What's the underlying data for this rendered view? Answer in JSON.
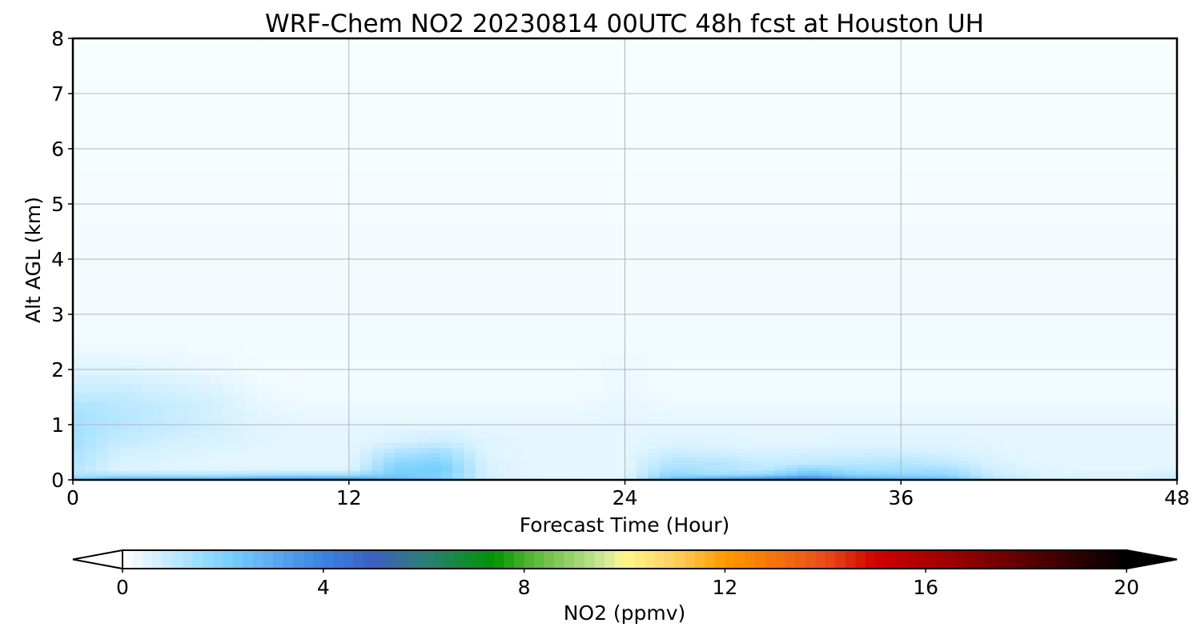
{
  "chart_data": {
    "type": "heatmap",
    "title": "WRF-Chem NO2  20230814 00UTC 48h fcst at Houston UH",
    "xlabel": "Forecast Time (Hour)",
    "ylabel": "Alt AGL (km)",
    "xlim": [
      0,
      48
    ],
    "ylim": [
      0,
      8
    ],
    "x_ticks": [
      0,
      12,
      24,
      36,
      48
    ],
    "y_ticks": [
      0,
      1,
      2,
      3,
      4,
      5,
      6,
      7,
      8
    ],
    "grid": true,
    "x_hours": [
      0,
      2,
      4,
      6,
      8,
      10,
      12,
      14,
      16,
      18,
      20,
      22,
      24,
      26,
      28,
      30,
      32,
      34,
      36,
      38,
      40,
      42,
      44,
      46,
      48
    ],
    "z_levels_km": [
      0,
      0.05,
      0.1,
      0.2,
      0.3,
      0.5,
      0.7,
      1.0,
      1.3,
      1.6,
      2.0,
      2.5,
      8.0
    ],
    "no2_ppmv": [
      [
        1.8,
        2.8,
        3.2,
        3.4,
        4.0,
        4.4,
        4.2,
        3.0,
        2.6,
        0.8,
        0.5,
        0.4,
        0.4,
        2.6,
        3.2,
        3.8,
        4.6,
        3.2,
        2.8,
        2.4,
        1.2,
        0.6,
        0.5,
        0.5,
        0.8
      ],
      [
        1.6,
        2.2,
        2.2,
        2.2,
        2.5,
        2.7,
        2.6,
        2.4,
        2.0,
        0.7,
        0.5,
        0.4,
        0.4,
        2.2,
        2.6,
        3.0,
        3.6,
        2.6,
        2.4,
        2.2,
        1.0,
        0.6,
        0.5,
        0.5,
        0.8
      ],
      [
        1.3,
        1.2,
        1.1,
        1.1,
        1.3,
        1.4,
        1.4,
        2.2,
        2.0,
        0.6,
        0.4,
        0.4,
        0.4,
        1.8,
        1.5,
        1.7,
        2.5,
        1.9,
        1.8,
        1.7,
        0.8,
        0.5,
        0.5,
        0.5,
        0.7
      ],
      [
        1.1,
        0.5,
        0.5,
        0.5,
        0.5,
        0.5,
        0.5,
        2.0,
        2.2,
        0.6,
        0.4,
        0.4,
        0.4,
        1.4,
        1.2,
        1.0,
        1.8,
        1.4,
        1.4,
        1.4,
        0.7,
        0.5,
        0.4,
        0.4,
        0.5
      ],
      [
        1.2,
        0.6,
        0.5,
        0.4,
        0.4,
        0.4,
        0.4,
        1.8,
        2.0,
        0.6,
        0.4,
        0.4,
        0.4,
        1.2,
        1.2,
        0.9,
        1.0,
        1.1,
        1.2,
        1.0,
        0.6,
        0.4,
        0.4,
        0.4,
        0.4
      ],
      [
        1.3,
        0.7,
        0.6,
        0.5,
        0.4,
        0.4,
        0.4,
        1.2,
        1.5,
        0.5,
        0.4,
        0.4,
        0.4,
        0.8,
        0.7,
        0.6,
        0.7,
        0.7,
        0.7,
        0.6,
        0.5,
        0.4,
        0.4,
        0.4,
        0.4
      ],
      [
        1.4,
        0.9,
        0.7,
        0.6,
        0.5,
        0.4,
        0.4,
        0.6,
        0.8,
        0.5,
        0.4,
        0.4,
        0.4,
        0.5,
        0.5,
        0.4,
        0.4,
        0.5,
        0.5,
        0.5,
        0.4,
        0.4,
        0.4,
        0.4,
        0.4
      ],
      [
        1.4,
        1.1,
        0.9,
        0.7,
        0.5,
        0.4,
        0.4,
        0.4,
        0.4,
        0.4,
        0.4,
        0.4,
        0.4,
        0.4,
        0.4,
        0.4,
        0.4,
        0.4,
        0.4,
        0.4,
        0.4,
        0.4,
        0.4,
        0.4,
        0.4
      ],
      [
        1.3,
        1.1,
        0.9,
        0.7,
        0.4,
        0.3,
        0.3,
        0.3,
        0.3,
        0.3,
        0.3,
        0.3,
        0.4,
        0.3,
        0.3,
        0.3,
        0.3,
        0.3,
        0.3,
        0.3,
        0.3,
        0.3,
        0.3,
        0.3,
        0.3
      ],
      [
        0.9,
        0.9,
        0.7,
        0.6,
        0.3,
        0.2,
        0.2,
        0.2,
        0.2,
        0.2,
        0.2,
        0.2,
        0.3,
        0.2,
        0.2,
        0.2,
        0.2,
        0.2,
        0.2,
        0.2,
        0.2,
        0.2,
        0.2,
        0.2,
        0.2
      ],
      [
        0.5,
        0.5,
        0.4,
        0.3,
        0.2,
        0.2,
        0.2,
        0.2,
        0.2,
        0.2,
        0.2,
        0.2,
        0.3,
        0.2,
        0.2,
        0.2,
        0.2,
        0.2,
        0.2,
        0.2,
        0.2,
        0.2,
        0.2,
        0.2,
        0.2
      ],
      [
        0.2,
        0.2,
        0.2,
        0.2,
        0.2,
        0.2,
        0.2,
        0.2,
        0.2,
        0.2,
        0.2,
        0.2,
        0.2,
        0.2,
        0.2,
        0.2,
        0.2,
        0.2,
        0.2,
        0.2,
        0.2,
        0.2,
        0.2,
        0.2,
        0.2
      ],
      [
        0.1,
        0.1,
        0.1,
        0.1,
        0.1,
        0.1,
        0.1,
        0.1,
        0.1,
        0.1,
        0.1,
        0.1,
        0.1,
        0.1,
        0.1,
        0.1,
        0.1,
        0.1,
        0.1,
        0.1,
        0.1,
        0.1,
        0.1,
        0.1,
        0.1
      ]
    ],
    "colorbar": {
      "label": "NO2  (ppmv)",
      "range": [
        0,
        20
      ],
      "ticks": [
        0,
        4,
        8,
        12,
        16,
        20
      ],
      "extend": "both",
      "orientation": "horizontal",
      "placement": "bottom",
      "anchors": [
        {
          "v": 0,
          "c": "#ffffff"
        },
        {
          "v": 2,
          "c": "#7dd3ff"
        },
        {
          "v": 4,
          "c": "#3b82e0"
        },
        {
          "v": 5,
          "c": "#3b5fbf"
        },
        {
          "v": 6,
          "c": "#2e7d7a"
        },
        {
          "v": 7.4,
          "c": "#009400"
        },
        {
          "v": 8.2,
          "c": "#5cb83a"
        },
        {
          "v": 9.6,
          "c": "#cfe89a"
        },
        {
          "v": 10,
          "c": "#fff78a"
        },
        {
          "v": 11,
          "c": "#ffd060"
        },
        {
          "v": 12,
          "c": "#ff9a00"
        },
        {
          "v": 14,
          "c": "#e84d1a"
        },
        {
          "v": 15,
          "c": "#d00000"
        },
        {
          "v": 17,
          "c": "#8a0000"
        },
        {
          "v": 20,
          "c": "#000000"
        }
      ],
      "under_color": "#ffffff",
      "over_color": "#000000"
    }
  }
}
